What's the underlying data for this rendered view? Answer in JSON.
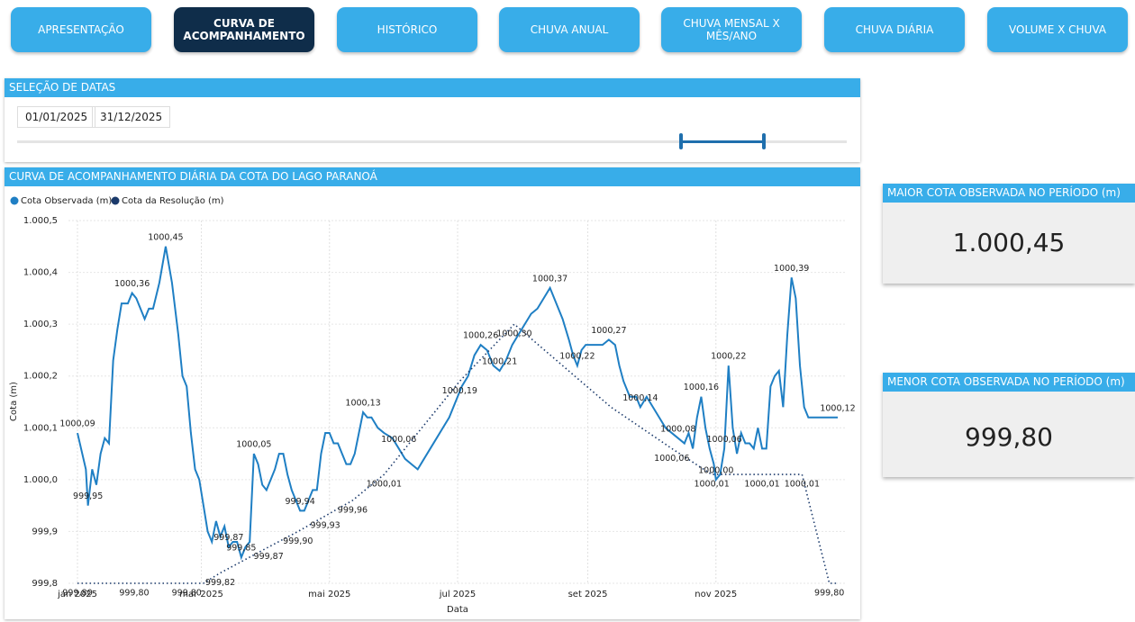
{
  "nav": [
    "APRESENTAÇÃO",
    "CURVA DE ACOMPANHAMENTO",
    "HISTÓRICO",
    "CHUVA ANUAL",
    "CHUVA MENSAL X MÊS/ANO",
    "CHUVA DIÁRIA",
    "VOLUME X CHUVA"
  ],
  "date_filter": {
    "title": "SELEÇÃO DE DATAS",
    "start": "01/01/2025",
    "end": "31/12/2025"
  },
  "chart_data": {
    "type": "line",
    "title": "CURVA DE ACOMPANHAMENTO DIÁRIA DA COTA DO LAGO PARANOÁ",
    "x_label": "Data",
    "y_label": "Cota (m)",
    "grid": true,
    "xlim": [
      0,
      362
    ],
    "xticks": [
      {
        "value": 0,
        "label": "jan 2025"
      },
      {
        "value": 59,
        "label": "mar 2025"
      },
      {
        "value": 120,
        "label": "mai 2025"
      },
      {
        "value": 181,
        "label": "jul 2025"
      },
      {
        "value": 243,
        "label": "set 2025"
      },
      {
        "value": 304,
        "label": "nov 2025"
      }
    ],
    "ylim": [
      999.8,
      1000.5
    ],
    "yticks": [
      {
        "value": 999.8,
        "label": "999,8"
      },
      {
        "value": 999.9,
        "label": "999,9"
      },
      {
        "value": 1000.0,
        "label": "1.000,0"
      },
      {
        "value": 1000.1,
        "label": "1.000,1"
      },
      {
        "value": 1000.2,
        "label": "1.000,2"
      },
      {
        "value": 1000.3,
        "label": "1.000,3"
      },
      {
        "value": 1000.4,
        "label": "1.000,4"
      },
      {
        "value": 1000.5,
        "label": "1.000,5"
      }
    ],
    "series": [
      {
        "name": "Cota Observada (m)",
        "color": "#1f7fc4",
        "style": "solid",
        "x": [
          0,
          4,
          5,
          7,
          9,
          11,
          13,
          15,
          17,
          19,
          21,
          24,
          26,
          28,
          30,
          32,
          34,
          36,
          39,
          42,
          45,
          48,
          50,
          52,
          54,
          56,
          58,
          60,
          62,
          64,
          66,
          68,
          70,
          72,
          74,
          76,
          78,
          80,
          82,
          84,
          86,
          88,
          90,
          92,
          94,
          96,
          98,
          100,
          102,
          104,
          106,
          108,
          110,
          112,
          114,
          116,
          118,
          120,
          122,
          124,
          126,
          128,
          130,
          132,
          134,
          136,
          138,
          140,
          143,
          146,
          150,
          153,
          156,
          159,
          162,
          165,
          168,
          171,
          174,
          177,
          180,
          183,
          186,
          189,
          192,
          195,
          198,
          201,
          204,
          207,
          210,
          213,
          216,
          219,
          222,
          225,
          228,
          231,
          234,
          236,
          238,
          240,
          242,
          246,
          250,
          253,
          256,
          258,
          260,
          263,
          266,
          268,
          271,
          274,
          277,
          280,
          283,
          286,
          289,
          291,
          293,
          295,
          297,
          299,
          301,
          303,
          304,
          306,
          308,
          310,
          312,
          314,
          316,
          318,
          320,
          322,
          324,
          326,
          328,
          330,
          332,
          334,
          336,
          338,
          340,
          342,
          344,
          346,
          348,
          352,
          358,
          362
        ],
        "values": [
          1000.09,
          1000.02,
          999.95,
          1000.02,
          999.99,
          1000.05,
          1000.08,
          1000.07,
          1000.23,
          1000.29,
          1000.34,
          1000.34,
          1000.36,
          1000.35,
          1000.33,
          1000.31,
          1000.33,
          1000.33,
          1000.38,
          1000.45,
          1000.38,
          1000.28,
          1000.2,
          1000.18,
          1000.09,
          1000.02,
          1000,
          999.95,
          999.9,
          999.88,
          999.92,
          999.89,
          999.91,
          999.87,
          999.88,
          999.88,
          999.85,
          999.87,
          999.88,
          1000.05,
          1000.03,
          999.99,
          999.98,
          1000,
          1000.02,
          1000.05,
          1000.05,
          1000.01,
          999.98,
          999.96,
          999.94,
          999.94,
          999.96,
          999.98,
          999.98,
          1000.05,
          1000.09,
          1000.09,
          1000.07,
          1000.07,
          1000.05,
          1000.03,
          1000.03,
          1000.05,
          1000.09,
          1000.13,
          1000.12,
          1000.12,
          1000.1,
          1000.09,
          1000.08,
          1000.06,
          1000.04,
          1000.03,
          1000.02,
          1000.04,
          1000.06,
          1000.08,
          1000.1,
          1000.12,
          1000.15,
          1000.18,
          1000.2,
          1000.24,
          1000.26,
          1000.25,
          1000.22,
          1000.21,
          1000.23,
          1000.26,
          1000.28,
          1000.3,
          1000.32,
          1000.33,
          1000.35,
          1000.37,
          1000.34,
          1000.31,
          1000.27,
          1000.24,
          1000.22,
          1000.25,
          1000.26,
          1000.26,
          1000.26,
          1000.27,
          1000.26,
          1000.22,
          1000.19,
          1000.16,
          1000.16,
          1000.14,
          1000.16,
          1000.14,
          1000.12,
          1000.1,
          1000.09,
          1000.08,
          1000.07,
          1000.09,
          1000.06,
          1000.12,
          1000.16,
          1000.1,
          1000.06,
          1000.03,
          1000,
          1000.01,
          1000.06,
          1000.22,
          1000.1,
          1000.05,
          1000.09,
          1000.07,
          1000.07,
          1000.06,
          1000.1,
          1000.06,
          1000.06,
          1000.18,
          1000.2,
          1000.21,
          1000.14,
          1000.28,
          1000.39,
          1000.35,
          1000.22,
          1000.14,
          1000.12,
          1000.12,
          1000.12,
          1000.12
        ],
        "value_labels": [
          "1000,09",
          null,
          "999,95",
          null,
          null,
          null,
          null,
          null,
          null,
          null,
          null,
          null,
          "1000,36",
          null,
          null,
          null,
          null,
          null,
          null,
          "1000,45",
          null,
          null,
          null,
          null,
          null,
          null,
          null,
          null,
          null,
          null,
          null,
          null,
          null,
          "999,87",
          null,
          null,
          "999,85",
          null,
          null,
          "1000,05",
          null,
          null,
          null,
          null,
          null,
          null,
          null,
          null,
          null,
          null,
          "999,94",
          null,
          null,
          null,
          null,
          null,
          null,
          null,
          null,
          null,
          null,
          null,
          null,
          null,
          null,
          "1000,13",
          null,
          null,
          null,
          null,
          null,
          "1000,06",
          null,
          null,
          null,
          null,
          null,
          null,
          null,
          null,
          null,
          null,
          null,
          null,
          "1000,26",
          null,
          null,
          "1000,21",
          null,
          null,
          null,
          null,
          null,
          null,
          null,
          "1000,37",
          null,
          null,
          null,
          null,
          "1000,22",
          null,
          null,
          null,
          null,
          "1000,27",
          null,
          null,
          null,
          null,
          null,
          "1000,14",
          null,
          null,
          null,
          null,
          null,
          "1000,08",
          null,
          null,
          null,
          null,
          "1000,16",
          null,
          null,
          null,
          "1000,00",
          null,
          "1000,06",
          "1000,22",
          null,
          null,
          null,
          null,
          null,
          null,
          null,
          null,
          null,
          null,
          null,
          null,
          null,
          null,
          "1000,39",
          null,
          null,
          null,
          null,
          null,
          null,
          "1000,12"
        ]
      },
      {
        "name": "Cota da Resolução (m)",
        "color": "#1b3a6b",
        "style": "dotted",
        "x": [
          0,
          27,
          52,
          60,
          68,
          91,
          105,
          118,
          131,
          146,
          182,
          208,
          254,
          283,
          302,
          326,
          345,
          358,
          362
        ],
        "values": [
          999.8,
          999.8,
          999.8,
          999.8,
          999.82,
          999.87,
          999.9,
          999.93,
          999.96,
          1000.01,
          1000.19,
          1000.3,
          1000.14,
          1000.06,
          1000.01,
          1000.01,
          1000.01,
          999.8,
          999.8
        ],
        "value_labels": [
          "999,80",
          "999,80",
          "999,80",
          null,
          "999,82",
          "999,87",
          "999,90",
          "999,93",
          "999,96",
          "1000,01",
          "1000,19",
          "1000,30",
          null,
          "1000,06",
          "1000,01",
          "1000,01",
          "1000,01",
          "999,80",
          null
        ]
      }
    ]
  },
  "kpis": [
    {
      "title": "MAIOR COTA OBSERVADA NO PERÍODO (m)",
      "value": "1.000,45"
    },
    {
      "title": "MENOR  COTA OBSERVADA NO PERÍODO (m)",
      "value": "999,80"
    }
  ]
}
